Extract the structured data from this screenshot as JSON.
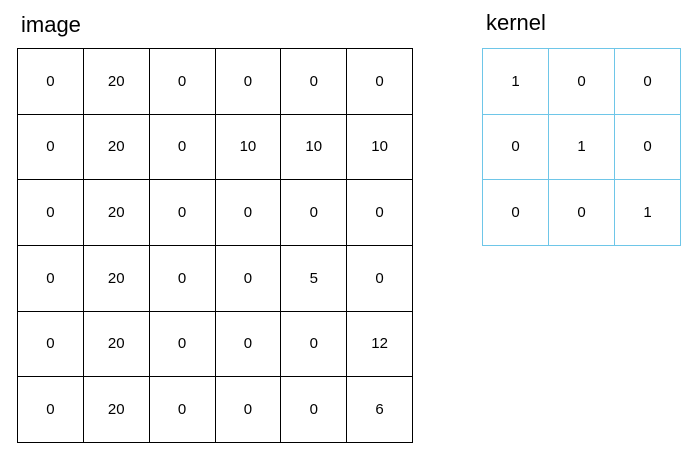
{
  "image": {
    "title": "image",
    "rows": [
      [
        "0",
        "20",
        "0",
        "0",
        "0",
        "0"
      ],
      [
        "0",
        "20",
        "0",
        "10",
        "10",
        "10"
      ],
      [
        "0",
        "20",
        "0",
        "0",
        "0",
        "0"
      ],
      [
        "0",
        "20",
        "0",
        "0",
        "5",
        "0"
      ],
      [
        "0",
        "20",
        "0",
        "0",
        "0",
        "12"
      ],
      [
        "0",
        "20",
        "0",
        "0",
        "0",
        "6"
      ]
    ]
  },
  "kernel": {
    "title": "kernel",
    "rows": [
      [
        "1",
        "0",
        "0"
      ],
      [
        "0",
        "1",
        "0"
      ],
      [
        "0",
        "0",
        "1"
      ]
    ]
  },
  "colors": {
    "image_grid_border": "#000000",
    "kernel_grid_border": "#6ec6e8"
  }
}
